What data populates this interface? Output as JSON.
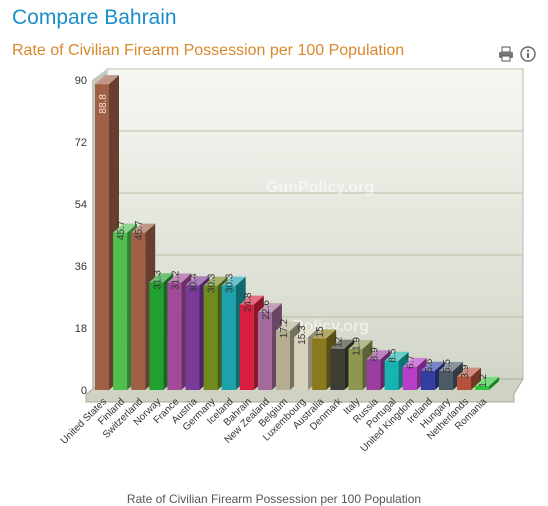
{
  "page": {
    "heading": "Compare Bahrain",
    "watermark": "GunPolicy.org",
    "footer_text": "Rate of Civilian Firearm Possession per 100 Population"
  },
  "toolbar": {
    "icons": [
      "print-icon",
      "info-icon"
    ]
  },
  "chart_data": {
    "type": "bar",
    "style": "3d",
    "title": "Rate of Civilian Firearm Possession per 100 Population",
    "xlabel": "",
    "ylabel": "",
    "ylim": [
      0,
      90
    ],
    "yticks": [
      0,
      18,
      36,
      54,
      72,
      90
    ],
    "grid": true,
    "legend": "none",
    "categories": [
      "United States",
      "Finland",
      "Switzerland",
      "Norway",
      "France",
      "Austria",
      "Germany",
      "Iceland",
      "Bahrain",
      "New Zealand",
      "Belgium",
      "Luxembourg",
      "Australia",
      "Denmark",
      "Italy",
      "Russia",
      "Portugal",
      "United Kingdom",
      "Ireland",
      "Hungary",
      "Netherlands",
      "Romania"
    ],
    "values": [
      88.8,
      45.7,
      45.7,
      31.3,
      31.2,
      30.4,
      30.3,
      30.3,
      24.8,
      22.6,
      17.2,
      15.3,
      15,
      12,
      11.9,
      8.9,
      8.5,
      6.7,
      5.6,
      5.5,
      3.9,
      1.2
    ],
    "value_labels": [
      "88.8",
      "45.7",
      "45.7",
      "31.3",
      "31.2",
      "30.4",
      "30.3",
      "30.3",
      "24.8",
      "22.6",
      "17.2",
      "15.3",
      "15",
      "12",
      "11.9",
      "8.9",
      "8.5",
      "6.7",
      "5.6",
      "5.5",
      "3.9",
      "1.2"
    ],
    "colors": [
      "#a06046",
      "#4fbf4f",
      "#a06046",
      "#22a02f",
      "#a24a98",
      "#7a3a9a",
      "#6f8a1e",
      "#1aa2ad",
      "#d91f3d",
      "#a36b9a",
      "#b5ad90",
      "#d8d2bc",
      "#8a7a1c",
      "#3d3d33",
      "#8e9650",
      "#9a3ea0",
      "#16b4b0",
      "#b83ec8",
      "#333ea0",
      "#4c5a66",
      "#b5533a",
      "#2ec83a"
    ]
  }
}
